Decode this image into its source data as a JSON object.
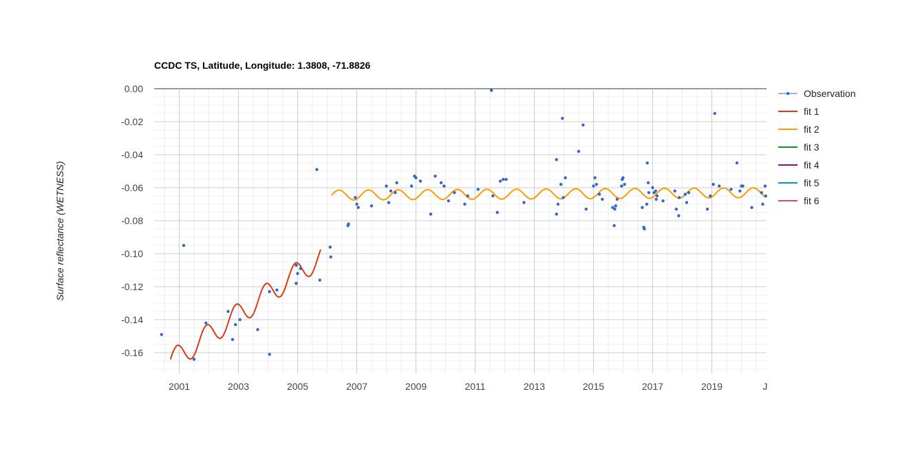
{
  "chart_data": {
    "type": "scatter",
    "title": "CCDC TS, Latitude, Longitude: 1.3808, -71.8826",
    "ylabel": "Surface reflectance (WETNESS)",
    "xlabel": "",
    "xlim": [
      2000.15,
      2020.85
    ],
    "ylim": [
      -0.1725,
      0.0
    ],
    "x_ticks": [
      {
        "value": 2001,
        "label": "2001"
      },
      {
        "value": 2003,
        "label": "2003"
      },
      {
        "value": 2005,
        "label": "2005"
      },
      {
        "value": 2007,
        "label": "2007"
      },
      {
        "value": 2009,
        "label": "2009"
      },
      {
        "value": 2011,
        "label": "2011"
      },
      {
        "value": 2013,
        "label": "2013"
      },
      {
        "value": 2015,
        "label": "2015"
      },
      {
        "value": 2017,
        "label": "2017"
      },
      {
        "value": 2019,
        "label": "2019"
      },
      {
        "value": 2020.8,
        "label": "J"
      }
    ],
    "y_ticks": [
      {
        "value": 0.0,
        "label": "0.00"
      },
      {
        "value": -0.02,
        "label": "-0.02"
      },
      {
        "value": -0.04,
        "label": "-0.04"
      },
      {
        "value": -0.06,
        "label": "-0.06"
      },
      {
        "value": -0.08,
        "label": "-0.08"
      },
      {
        "value": -0.1,
        "label": "-0.10"
      },
      {
        "value": -0.12,
        "label": "-0.12"
      },
      {
        "value": -0.14,
        "label": "-0.14"
      },
      {
        "value": -0.16,
        "label": "-0.16"
      }
    ],
    "legend": [
      {
        "name": "Observation",
        "color": "#3366cc",
        "marker": "dot"
      },
      {
        "name": "fit 1",
        "color": "#dc3912"
      },
      {
        "name": "fit 2",
        "color": "#ff9900"
      },
      {
        "name": "fit 3",
        "color": "#109618"
      },
      {
        "name": "fit 4",
        "color": "#990099"
      },
      {
        "name": "fit 5",
        "color": "#0099c6"
      },
      {
        "name": "fit 6",
        "color": "#dd4477"
      }
    ],
    "legend_position": "right",
    "grid": true,
    "observations": [
      [
        2000.4,
        -0.149
      ],
      [
        2001.15,
        -0.095
      ],
      [
        2001.5,
        -0.164
      ],
      [
        2001.9,
        -0.142
      ],
      [
        2002.65,
        -0.135
      ],
      [
        2002.8,
        -0.152
      ],
      [
        2002.9,
        -0.143
      ],
      [
        2003.05,
        -0.14
      ],
      [
        2003.65,
        -0.146
      ],
      [
        2004.05,
        -0.123
      ],
      [
        2004.05,
        -0.161
      ],
      [
        2004.3,
        -0.122
      ],
      [
        2004.95,
        -0.107
      ],
      [
        2004.95,
        -0.118
      ],
      [
        2005.0,
        -0.112
      ],
      [
        2005.1,
        -0.109
      ],
      [
        2005.65,
        -0.049
      ],
      [
        2005.75,
        -0.116
      ],
      [
        2006.1,
        -0.096
      ],
      [
        2006.12,
        -0.102
      ],
      [
        2006.7,
        -0.083
      ],
      [
        2006.72,
        -0.082
      ],
      [
        2006.95,
        -0.066
      ],
      [
        2007.0,
        -0.07
      ],
      [
        2007.05,
        -0.072
      ],
      [
        2007.5,
        -0.071
      ],
      [
        2008.0,
        -0.059
      ],
      [
        2008.08,
        -0.069
      ],
      [
        2008.15,
        -0.062
      ],
      [
        2008.3,
        -0.063
      ],
      [
        2008.35,
        -0.057
      ],
      [
        2008.85,
        -0.059
      ],
      [
        2008.95,
        -0.053
      ],
      [
        2009.0,
        -0.054
      ],
      [
        2009.15,
        -0.056
      ],
      [
        2009.5,
        -0.076
      ],
      [
        2009.65,
        -0.053
      ],
      [
        2009.85,
        -0.057
      ],
      [
        2009.95,
        -0.059
      ],
      [
        2010.1,
        -0.068
      ],
      [
        2010.3,
        -0.063
      ],
      [
        2010.65,
        -0.07
      ],
      [
        2010.75,
        -0.065
      ],
      [
        2011.1,
        -0.061
      ],
      [
        2011.55,
        -0.001
      ],
      [
        2011.6,
        -0.065
      ],
      [
        2011.75,
        -0.075
      ],
      [
        2011.85,
        -0.056
      ],
      [
        2011.95,
        -0.055
      ],
      [
        2012.05,
        -0.055
      ],
      [
        2012.65,
        -0.069
      ],
      [
        2013.75,
        -0.043
      ],
      [
        2013.75,
        -0.076
      ],
      [
        2013.8,
        -0.07
      ],
      [
        2013.9,
        -0.058
      ],
      [
        2013.95,
        -0.018
      ],
      [
        2013.98,
        -0.066
      ],
      [
        2014.05,
        -0.054
      ],
      [
        2014.5,
        -0.038
      ],
      [
        2014.65,
        -0.022
      ],
      [
        2014.75,
        -0.073
      ],
      [
        2015.0,
        -0.059
      ],
      [
        2015.05,
        -0.054
      ],
      [
        2015.1,
        -0.058
      ],
      [
        2015.2,
        -0.064
      ],
      [
        2015.3,
        -0.067
      ],
      [
        2015.65,
        -0.072
      ],
      [
        2015.7,
        -0.083
      ],
      [
        2015.72,
        -0.073
      ],
      [
        2015.75,
        -0.071
      ],
      [
        2015.8,
        -0.067
      ],
      [
        2015.95,
        -0.059
      ],
      [
        2015.97,
        -0.055
      ],
      [
        2016.0,
        -0.054
      ],
      [
        2016.05,
        -0.058
      ],
      [
        2016.65,
        -0.072
      ],
      [
        2016.7,
        -0.084
      ],
      [
        2016.72,
        -0.085
      ],
      [
        2016.8,
        -0.07
      ],
      [
        2016.82,
        -0.045
      ],
      [
        2016.85,
        -0.057
      ],
      [
        2016.87,
        -0.063
      ],
      [
        2017.0,
        -0.06
      ],
      [
        2017.05,
        -0.063
      ],
      [
        2017.1,
        -0.062
      ],
      [
        2017.12,
        -0.067
      ],
      [
        2017.15,
        -0.065
      ],
      [
        2017.35,
        -0.068
      ],
      [
        2017.75,
        -0.062
      ],
      [
        2017.8,
        -0.073
      ],
      [
        2017.88,
        -0.077
      ],
      [
        2017.9,
        -0.066
      ],
      [
        2018.1,
        -0.064
      ],
      [
        2018.15,
        -0.069
      ],
      [
        2018.22,
        -0.063
      ],
      [
        2018.85,
        -0.073
      ],
      [
        2018.95,
        -0.065
      ],
      [
        2019.05,
        -0.058
      ],
      [
        2019.1,
        -0.015
      ],
      [
        2019.25,
        -0.059
      ],
      [
        2019.65,
        -0.061
      ],
      [
        2019.85,
        -0.045
      ],
      [
        2019.95,
        -0.062
      ],
      [
        2020.0,
        -0.059
      ],
      [
        2020.05,
        -0.059
      ],
      [
        2020.35,
        -0.072
      ],
      [
        2020.68,
        -0.063
      ],
      [
        2020.72,
        -0.07
      ],
      [
        2020.8,
        -0.059
      ],
      [
        2020.82,
        -0.065
      ]
    ],
    "fits": [
      {
        "name": "fit 1",
        "start": 2000.7,
        "end": 2005.78,
        "intercept": -0.1655,
        "slope": 0.0125,
        "amplitude": 0.007,
        "phase": 0.2
      },
      {
        "name": "fit 2",
        "start": 2006.15,
        "end": 2020.85,
        "intercept": -0.0645,
        "slope": 0.0001,
        "amplitude": 0.003,
        "phase": 0.0
      }
    ]
  }
}
